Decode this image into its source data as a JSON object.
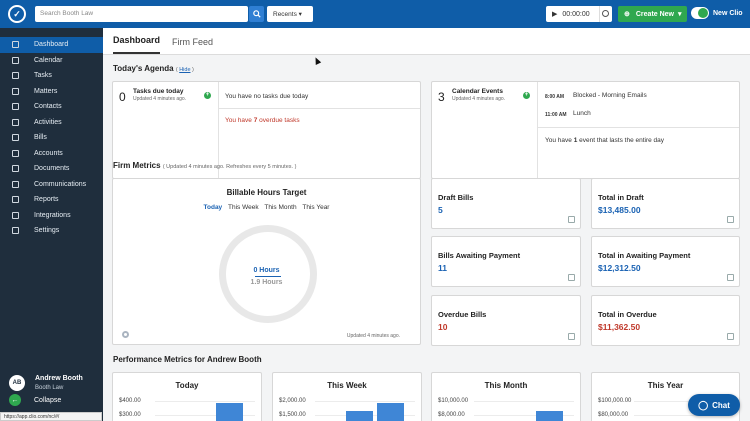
{
  "topbar": {
    "search_placeholder": "Search Booth Law",
    "recents_label": "Recents",
    "timer_value": "00:00:00",
    "create_new_label": "Create New",
    "new_clio_label": "New Clio"
  },
  "sidebar": {
    "items": [
      {
        "label": "Dashboard",
        "icon": "home-icon"
      },
      {
        "label": "Calendar",
        "icon": "calendar-icon"
      },
      {
        "label": "Tasks",
        "icon": "tasks-icon"
      },
      {
        "label": "Matters",
        "icon": "briefcase-icon"
      },
      {
        "label": "Contacts",
        "icon": "contacts-icon"
      },
      {
        "label": "Activities",
        "icon": "clock-icon"
      },
      {
        "label": "Bills",
        "icon": "bills-icon"
      },
      {
        "label": "Accounts",
        "icon": "bank-icon"
      },
      {
        "label": "Documents",
        "icon": "documents-icon"
      },
      {
        "label": "Communications",
        "icon": "communications-icon"
      },
      {
        "label": "Reports",
        "icon": "reports-icon"
      },
      {
        "label": "Integrations",
        "icon": "integrations-icon"
      },
      {
        "label": "Settings",
        "icon": "gear-icon"
      }
    ],
    "user": {
      "initials": "AB",
      "name": "Andrew Booth",
      "firm": "Booth Law"
    },
    "collapse_label": "Collapse",
    "status_url": "https://app.clio.com/nc/#/"
  },
  "tabs": [
    "Dashboard",
    "Firm Feed"
  ],
  "agenda": {
    "title": "Today's Agenda",
    "hide_label": "Hide",
    "tasks": {
      "count": "0",
      "label": "Tasks due today",
      "updated": "Updated 4 minutes ago.",
      "none_text": "You have no tasks due today",
      "overdue_prefix": "You have ",
      "overdue_count": "7",
      "overdue_suffix": " overdue tasks"
    },
    "calendar": {
      "count": "3",
      "label": "Calendar Events",
      "updated": "Updated 4 minutes ago.",
      "events": [
        {
          "time": "8:00 AM",
          "title": "Blocked - Morning Emails"
        },
        {
          "time": "11:00 AM",
          "title": "Lunch"
        }
      ],
      "allday_prefix": "You have ",
      "allday_count": "1",
      "allday_suffix": " event that lasts the entire day"
    }
  },
  "firm_metrics": {
    "title": "Firm Metrics",
    "subtitle": "( Updated 4 minutes ago. Refreshes every 5 minutes. )",
    "billable": {
      "title": "Billable Hours Target",
      "periods": [
        "Today",
        "This Week",
        "This Month",
        "This Year"
      ],
      "active_period": "Today",
      "actual": "0 Hours",
      "target": "1.9 Hours",
      "updated": "Updated 4 minutes ago."
    },
    "cards": [
      {
        "label": "Draft Bills",
        "value": "5"
      },
      {
        "label": "Total in Draft",
        "value": "$13,485.00"
      },
      {
        "label": "Bills Awaiting Payment",
        "value": "11"
      },
      {
        "label": "Total in Awaiting Payment",
        "value": "$12,312.50"
      },
      {
        "label": "Overdue Bills",
        "value": "10"
      },
      {
        "label": "Total in Overdue",
        "value": "$11,362.50"
      }
    ]
  },
  "performance": {
    "title": "Performance Metrics for Andrew Booth",
    "cards": [
      {
        "title": "Today",
        "ticks": [
          "$400.00",
          "$300.00"
        ]
      },
      {
        "title": "This Week",
        "ticks": [
          "$2,000.00",
          "$1,500.00"
        ]
      },
      {
        "title": "This Month",
        "ticks": [
          "$10,000.00",
          "$8,000.00"
        ]
      },
      {
        "title": "This Year",
        "ticks": [
          "$100,000.00",
          "$80,000.00"
        ]
      }
    ]
  },
  "chat_label": "Chat",
  "colors": {
    "brand": "#0f5da8",
    "sidebar": "#1f2e3d",
    "green": "#2fa84f",
    "overdue": "#c0392b",
    "link": "#1a62b3"
  }
}
